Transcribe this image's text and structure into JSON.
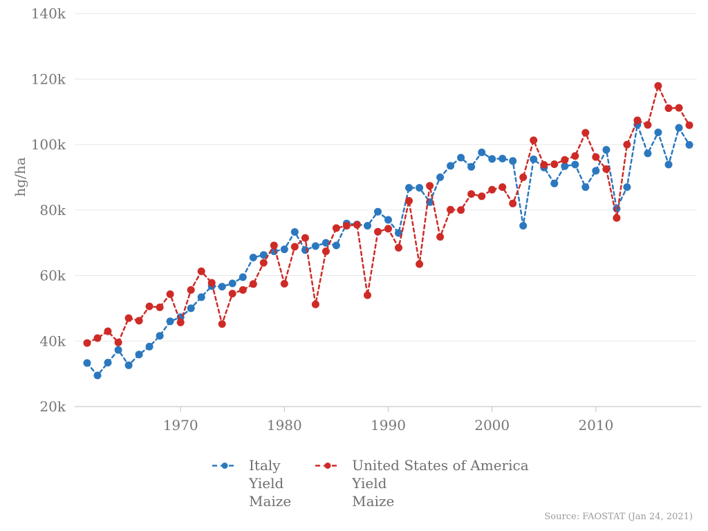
{
  "chart_data": {
    "type": "line",
    "ylabel": "hg/ha",
    "line_style": "dashed",
    "marker": "circle",
    "grid": true,
    "legend_position": "bottom",
    "xlim": [
      1961,
      2019
    ],
    "ylim": [
      20000,
      140000
    ],
    "x_ticks": [
      "1970",
      "1980",
      "1990",
      "2000",
      "2010"
    ],
    "x_tick_years": [
      1970,
      1980,
      1990,
      2000,
      2010
    ],
    "y_ticks": [
      {
        "value": 20000,
        "label": "20k"
      },
      {
        "value": 40000,
        "label": "40k"
      },
      {
        "value": 60000,
        "label": "60k"
      },
      {
        "value": 80000,
        "label": "80k"
      },
      {
        "value": 100000,
        "label": "100k"
      },
      {
        "value": 120000,
        "label": "120k"
      },
      {
        "value": 140000,
        "label": "140k"
      }
    ],
    "years": [
      1961,
      1962,
      1963,
      1964,
      1965,
      1966,
      1967,
      1968,
      1969,
      1970,
      1971,
      1972,
      1973,
      1974,
      1975,
      1976,
      1977,
      1978,
      1979,
      1980,
      1981,
      1982,
      1983,
      1984,
      1985,
      1986,
      1987,
      1988,
      1989,
      1990,
      1991,
      1992,
      1993,
      1994,
      1995,
      1996,
      1997,
      1998,
      1999,
      2000,
      2001,
      2002,
      2003,
      2004,
      2005,
      2006,
      2007,
      2008,
      2009,
      2010,
      2011,
      2012,
      2013,
      2014,
      2015,
      2016,
      2017,
      2018,
      2019
    ],
    "series": [
      {
        "id": "italy",
        "name": "Italy Yield Maize",
        "legend_lines": [
          "Italy",
          "Yield",
          "Maize"
        ],
        "color": "#2b78bf",
        "values": [
          33300,
          29500,
          33400,
          37300,
          32600,
          35900,
          38300,
          41600,
          46000,
          47300,
          50000,
          53400,
          56800,
          56600,
          57600,
          59500,
          65500,
          66300,
          67400,
          68000,
          73300,
          67800,
          69000,
          70000,
          69200,
          75900,
          75600,
          75200,
          79500,
          77000,
          73000,
          86800,
          86800,
          82400,
          90000,
          93500,
          96000,
          93200,
          97600,
          95600,
          95700,
          95000,
          75200,
          95500,
          93000,
          88100,
          93400,
          93900,
          87000,
          92000,
          98400,
          80400,
          87000,
          106100,
          97300,
          103700,
          93900,
          105100,
          99900
        ]
      },
      {
        "id": "united-states",
        "name": "United States of America Yield Maize",
        "legend_lines": [
          "United States of America",
          "Yield",
          "Maize"
        ],
        "color": "#ce2b27",
        "values": [
          39400,
          40900,
          43000,
          39600,
          47000,
          46200,
          50600,
          50300,
          54300,
          45700,
          55600,
          61300,
          57800,
          45200,
          54500,
          55600,
          57400,
          63900,
          69200,
          57500,
          68800,
          71500,
          51200,
          67400,
          74500,
          75200,
          75500,
          54000,
          73400,
          74300,
          68500,
          82800,
          63500,
          87400,
          71800,
          80100,
          80000,
          84900,
          84200,
          86200,
          87000,
          82000,
          90000,
          101300,
          93800,
          94000,
          95300,
          96500,
          103600,
          96200,
          92500,
          77600,
          100000,
          107400,
          106000,
          117900,
          111100,
          111200,
          105900
        ]
      }
    ],
    "source_note": "Source: FAOSTAT (Jan 24, 2021)",
    "colors": {
      "grid": "#e8e8e8",
      "axis": "#cbcbcb",
      "tick_text": "#767676",
      "legend_text": "#6e6e6e",
      "source_text": "#9b9b9b"
    }
  }
}
